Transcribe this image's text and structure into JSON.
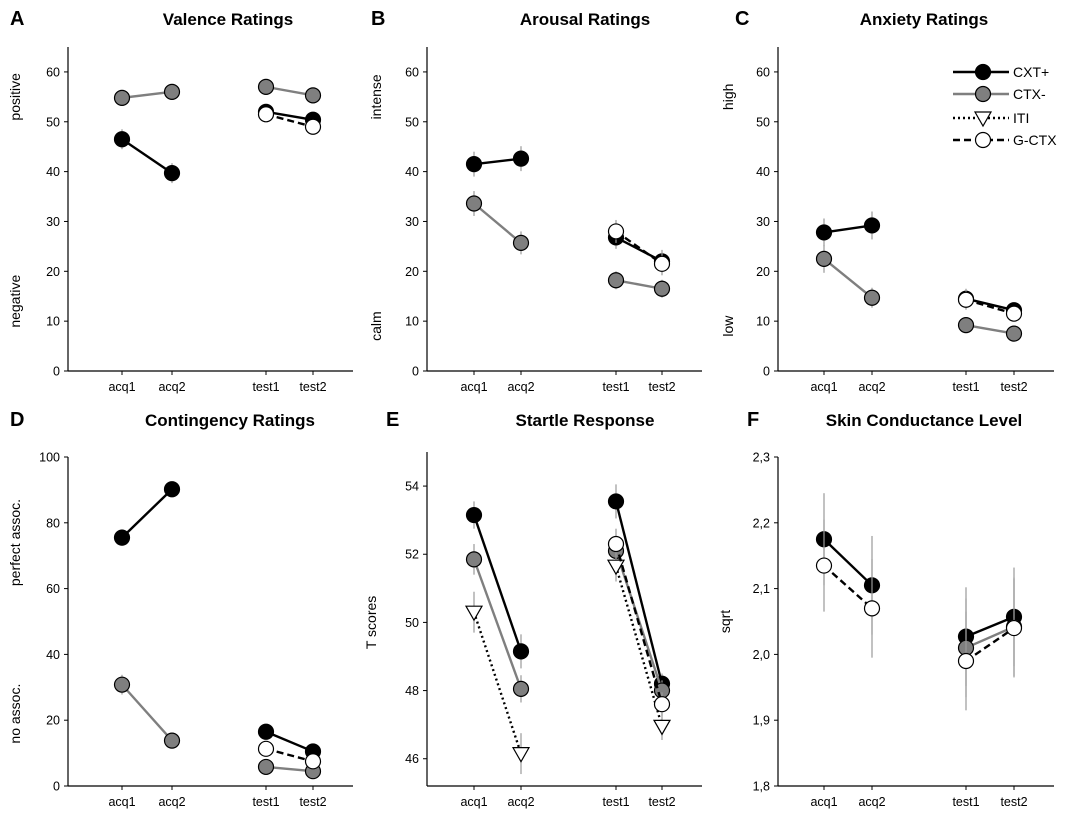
{
  "colors": {
    "cxt_plus": "#000000",
    "ctx_minus": "#7f7f7f",
    "open": "#ffffff",
    "error_bar": "#9a9a9a"
  },
  "legend": {
    "entries": [
      {
        "label": "CXT+",
        "series": "CXT+"
      },
      {
        "label": "CTX-",
        "series": "CTX-"
      },
      {
        "label": "ITI",
        "series": "ITI"
      },
      {
        "label": "G-CTX",
        "series": "G-CTX"
      }
    ]
  },
  "chart_data": [
    {
      "letter": "A",
      "title": "Valence Ratings",
      "type": "line",
      "categories": [
        "acq1",
        "acq2",
        "test1",
        "test2"
      ],
      "ylim": [
        0,
        65
      ],
      "yticks": [
        "0",
        "10",
        "20",
        "30",
        "40",
        "50",
        "60"
      ],
      "ylabels": [
        {
          "text": "positive",
          "value": 55
        },
        {
          "text": "negative",
          "value": 14
        }
      ],
      "series": [
        {
          "name": "CTX-",
          "values": [
            54.8,
            56.0,
            57.0,
            55.3
          ],
          "err": [
            1.5,
            1.5,
            1.3,
            1.5
          ]
        },
        {
          "name": "CXT+",
          "values": [
            46.5,
            39.7,
            52.0,
            50.4
          ],
          "err": [
            2.0,
            2.0,
            1.5,
            1.5
          ]
        },
        {
          "name": "G-CTX",
          "values": [
            null,
            null,
            51.5,
            49.0
          ],
          "err": [
            0,
            0,
            1.5,
            1.5
          ]
        }
      ]
    },
    {
      "letter": "B",
      "title": "Arousal Ratings",
      "type": "line",
      "categories": [
        "acq1",
        "acq2",
        "test1",
        "test2"
      ],
      "ylim": [
        0,
        65
      ],
      "yticks": [
        "0",
        "10",
        "20",
        "30",
        "40",
        "50",
        "60"
      ],
      "ylabels": [
        {
          "text": "intense",
          "value": 55
        },
        {
          "text": "calm",
          "value": 9
        }
      ],
      "series": [
        {
          "name": "CXT+",
          "values": [
            41.5,
            42.6,
            26.8,
            22.0
          ],
          "err": [
            2.5,
            2.5,
            2.3,
            2.3
          ]
        },
        {
          "name": "CTX-",
          "values": [
            33.6,
            25.7,
            18.2,
            16.5
          ],
          "err": [
            2.5,
            2.3,
            1.8,
            1.8
          ]
        },
        {
          "name": "G-CTX",
          "values": [
            null,
            null,
            28.0,
            21.5
          ],
          "err": [
            0,
            0,
            2.3,
            2.3
          ]
        }
      ]
    },
    {
      "letter": "C",
      "title": "Anxiety Ratings",
      "type": "line",
      "categories": [
        "acq1",
        "acq2",
        "test1",
        "test2"
      ],
      "ylim": [
        0,
        65
      ],
      "yticks": [
        "0",
        "10",
        "20",
        "30",
        "40",
        "50",
        "60"
      ],
      "ylabels": [
        {
          "text": "high",
          "value": 55
        },
        {
          "text": "low",
          "value": 9
        }
      ],
      "series": [
        {
          "name": "CXT+",
          "values": [
            27.8,
            29.2,
            14.5,
            12.2
          ],
          "err": [
            2.8,
            2.8,
            2.0,
            1.5
          ]
        },
        {
          "name": "CTX-",
          "values": [
            22.5,
            14.7,
            9.2,
            7.5
          ],
          "err": [
            2.8,
            2.0,
            1.3,
            1.3
          ]
        },
        {
          "name": "G-CTX",
          "values": [
            null,
            null,
            14.3,
            11.5
          ],
          "err": [
            0,
            0,
            2.0,
            1.5
          ]
        }
      ]
    },
    {
      "letter": "D",
      "title": "Contingency Ratings",
      "type": "line",
      "categories": [
        "acq1",
        "acq2",
        "test1",
        "test2"
      ],
      "ylim": [
        0,
        100
      ],
      "yticks": [
        "0",
        "20",
        "40",
        "60",
        "80",
        "100"
      ],
      "ylabels": [
        {
          "text": "perfect assoc.",
          "value": 74
        },
        {
          "text": "no assoc.",
          "value": 22
        }
      ],
      "series": [
        {
          "name": "CXT+",
          "values": [
            75.5,
            90.2,
            16.5,
            10.5
          ],
          "err": [
            2.5,
            1.5,
            2.0,
            2.0
          ]
        },
        {
          "name": "CTX-",
          "values": [
            30.8,
            13.8,
            5.8,
            4.5
          ],
          "err": [
            3.0,
            2.0,
            1.5,
            1.5
          ]
        },
        {
          "name": "G-CTX",
          "values": [
            null,
            null,
            11.3,
            7.5
          ],
          "err": [
            0,
            0,
            2.0,
            2.0
          ]
        }
      ]
    },
    {
      "letter": "E",
      "title": "Startle Response",
      "type": "line",
      "categories": [
        "acq1",
        "acq2",
        "test1",
        "test2"
      ],
      "ylim": [
        45.2,
        55.0
      ],
      "yticks": [
        "46",
        "48",
        "50",
        "52",
        "54"
      ],
      "ylabels": [
        {
          "text": "T scores",
          "value": 50
        }
      ],
      "series": [
        {
          "name": "CXT+",
          "values": [
            53.15,
            49.15,
            53.55,
            48.2
          ],
          "err": [
            0.4,
            0.5,
            0.5,
            0.3
          ]
        },
        {
          "name": "CTX-",
          "values": [
            51.85,
            48.05,
            52.1,
            48.0
          ],
          "err": [
            0.45,
            0.4,
            0.45,
            0.3
          ]
        },
        {
          "name": "ITI",
          "values": [
            50.3,
            46.15,
            51.65,
            46.95
          ],
          "err": [
            0.6,
            0.6,
            0.45,
            0.4
          ]
        },
        {
          "name": "G-CTX",
          "values": [
            null,
            null,
            52.3,
            47.6
          ],
          "err": [
            0,
            0,
            0.45,
            0.35
          ]
        }
      ]
    },
    {
      "letter": "F",
      "title": "Skin Conductance Level",
      "type": "line",
      "categories": [
        "acq1",
        "acq2",
        "test1",
        "test2"
      ],
      "ylim": [
        1.8,
        2.3
      ],
      "yticks": [
        "1,8",
        "1,9",
        "2,0",
        "2,1",
        "2,2",
        "2,3"
      ],
      "ylabels": [
        {
          "text": "sqrt",
          "value": 2.05
        }
      ],
      "series": [
        {
          "name": "CXT+",
          "values": [
            2.175,
            2.105,
            2.027,
            2.057
          ],
          "err": [
            0.07,
            0.075,
            0.075,
            0.075
          ]
        },
        {
          "name": "CTX-",
          "values": [
            null,
            null,
            2.01,
            2.042
          ],
          "err": [
            0,
            0,
            0.075,
            0.075
          ]
        },
        {
          "name": "G-CTX",
          "values": [
            2.135,
            2.07,
            1.99,
            2.04
          ],
          "err": [
            0.07,
            0.075,
            0.075,
            0.075
          ]
        }
      ]
    }
  ]
}
